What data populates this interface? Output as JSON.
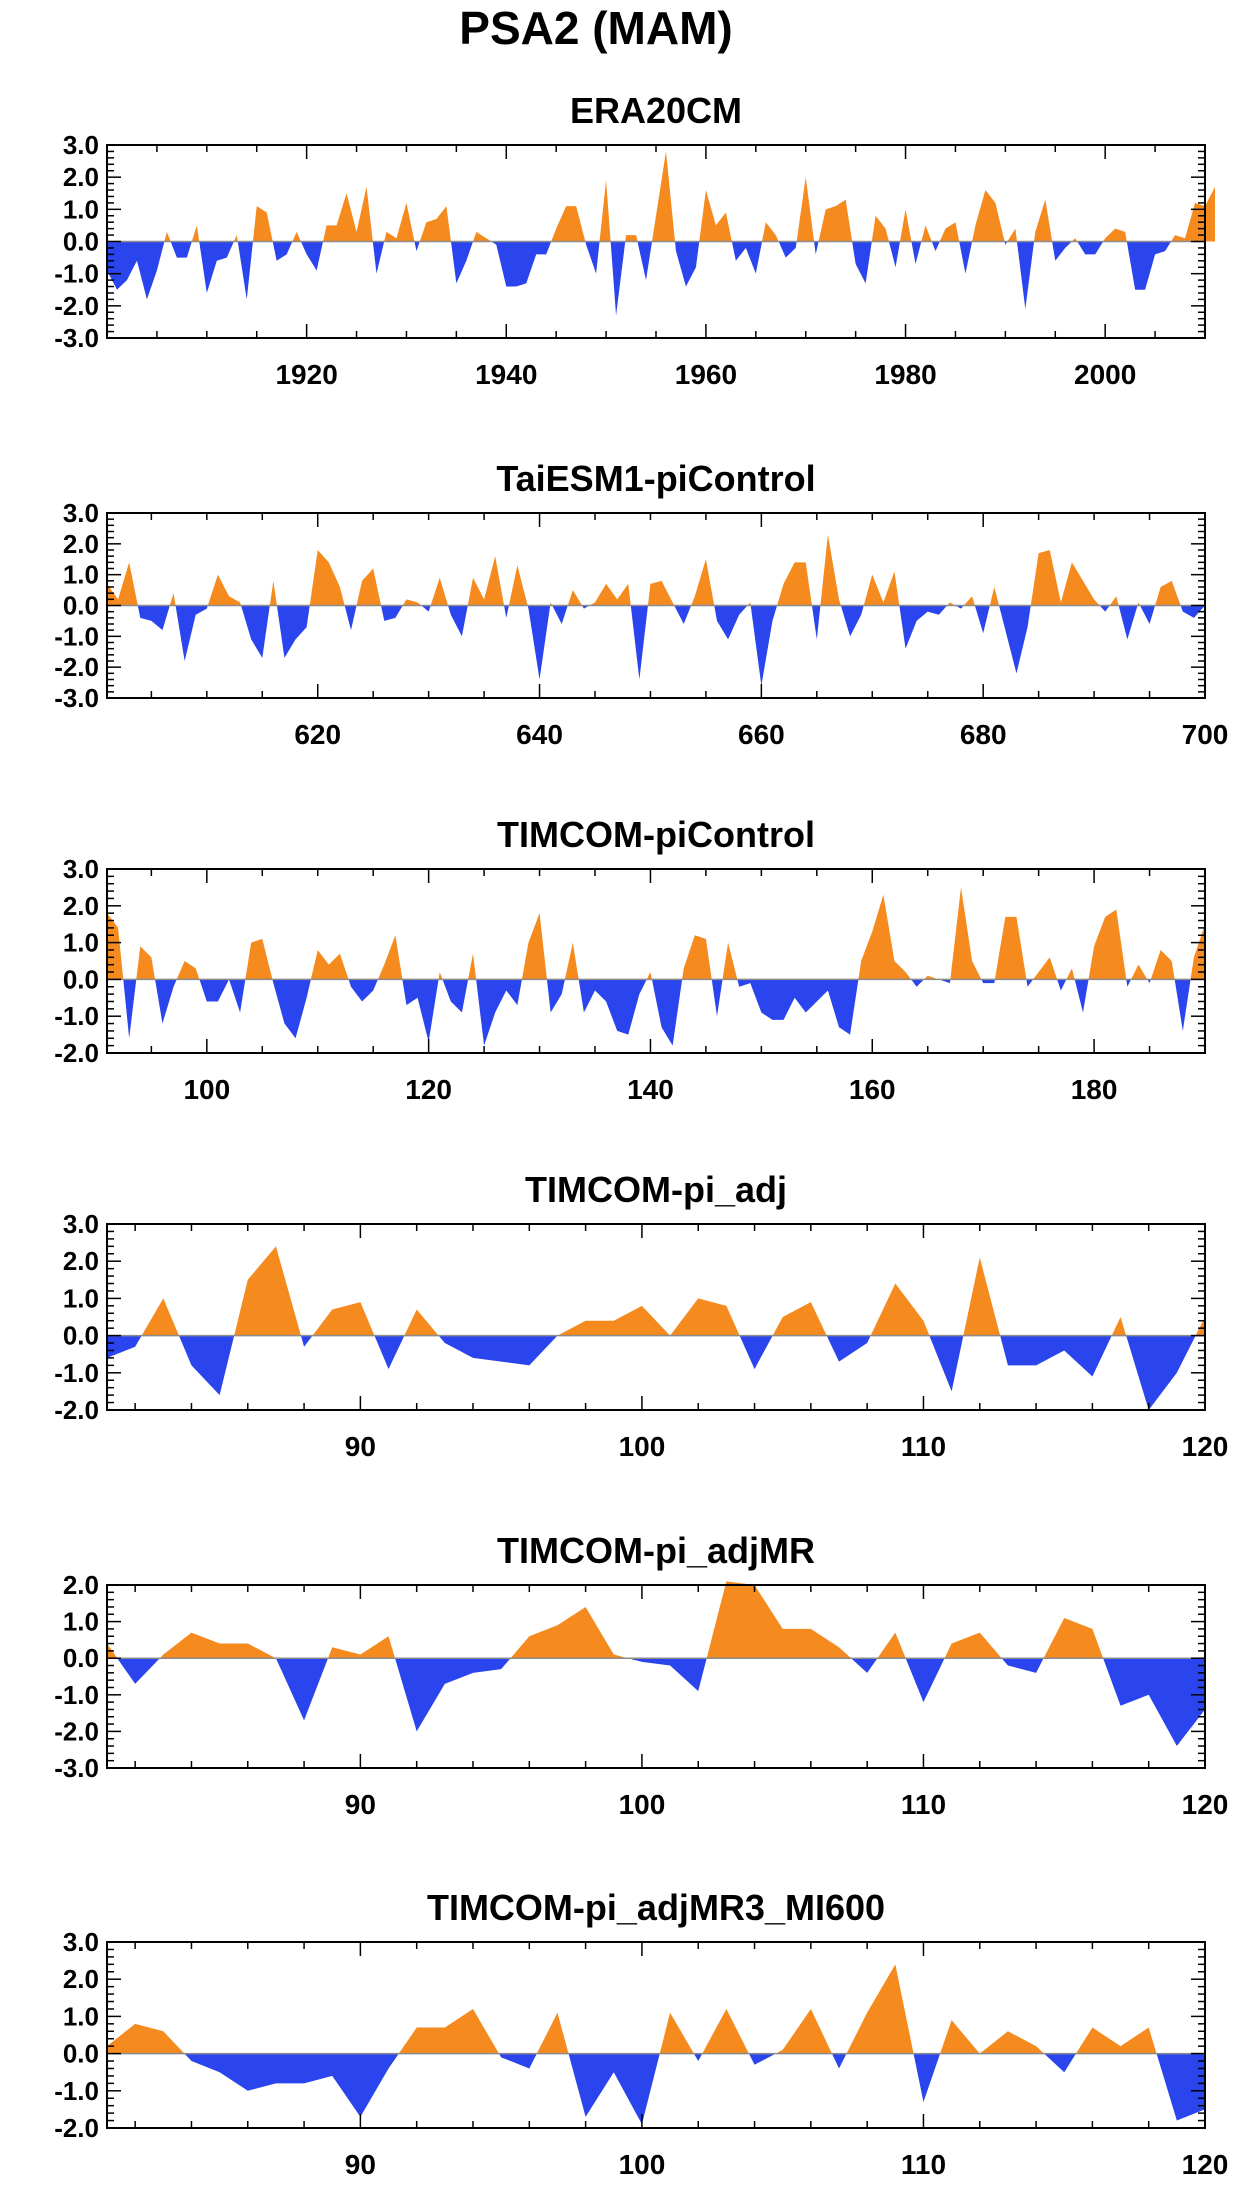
{
  "title": "PSA2 (MAM)",
  "colors": {
    "positive": "#f58a1e",
    "negative": "#2a45ee",
    "frame": "#000000"
  },
  "chart_data": [
    {
      "type": "area",
      "title": "ERA20CM",
      "xlim": [
        1900,
        2010
      ],
      "ylim": [
        -3,
        3
      ],
      "xticks": [
        1920,
        1940,
        1960,
        1980,
        2000
      ],
      "xtick_labels": [
        "1920",
        "1940",
        "1960",
        "1980",
        "2000"
      ],
      "yticks": [
        -3,
        -2,
        -1,
        0,
        1,
        2,
        3
      ],
      "ytick_labels": [
        "-3.0",
        "-2.0",
        "-1.0",
        "0.0",
        "1.0",
        "2.0",
        "3.0"
      ],
      "x_start": 1900,
      "values": [
        -0.9,
        -1.5,
        -1.2,
        -0.6,
        -1.8,
        -0.9,
        0.3,
        -0.5,
        -0.5,
        0.5,
        -1.6,
        -0.6,
        -0.5,
        0.2,
        -1.8,
        1.1,
        0.9,
        -0.6,
        -0.4,
        0.3,
        -0.4,
        -0.9,
        0.5,
        0.5,
        1.5,
        0.3,
        1.7,
        -1.0,
        0.3,
        0.1,
        1.2,
        -0.3,
        0.6,
        0.7,
        1.1,
        -1.3,
        -0.6,
        0.3,
        0.1,
        -0.1,
        -1.4,
        -1.4,
        -1.3,
        -0.4,
        -0.4,
        0.4,
        1.1,
        1.1,
        -0.1,
        -1.0,
        1.9,
        -2.3,
        0.2,
        0.2,
        -1.2,
        0.8,
        2.8,
        -0.3,
        -1.4,
        -0.8,
        1.6,
        0.5,
        0.9,
        -0.6,
        -0.2,
        -1.0,
        0.6,
        0.2,
        -0.5,
        -0.2,
        2.0,
        -0.4,
        1.0,
        1.1,
        1.3,
        -0.7,
        -1.3,
        0.8,
        0.4,
        -0.8,
        1.0,
        -0.7,
        0.5,
        -0.3,
        0.4,
        0.6,
        -1.0,
        0.5,
        1.6,
        1.2,
        -0.1,
        0.4,
        -2.1,
        0.3,
        1.3,
        -0.6,
        -0.2,
        0.1,
        -0.4,
        -0.4,
        0.1,
        0.4,
        0.3,
        -1.5,
        -1.5,
        -0.4,
        -0.3,
        0.2,
        0.1,
        1.2,
        1.1,
        1.7
      ]
    },
    {
      "type": "area",
      "title": "TaiESM1-piControl",
      "xlim": [
        601,
        700
      ],
      "ylim": [
        -3,
        3
      ],
      "xticks": [
        620,
        640,
        660,
        680,
        700
      ],
      "xtick_labels": [
        "620",
        "640",
        "660",
        "680",
        "700"
      ],
      "yticks": [
        -3,
        -2,
        -1,
        0,
        1,
        2,
        3
      ],
      "ytick_labels": [
        "-3.0",
        "-2.0",
        "-1.0",
        "0.0",
        "1.0",
        "2.0",
        "3.0"
      ],
      "x_start": 601,
      "values": [
        0.7,
        0.2,
        1.4,
        -0.4,
        -0.5,
        -0.8,
        0.4,
        -1.8,
        -0.3,
        -0.1,
        1.0,
        0.3,
        0.1,
        -1.1,
        -1.7,
        0.8,
        -1.7,
        -1.1,
        -0.7,
        1.8,
        1.4,
        0.6,
        -0.8,
        0.8,
        1.2,
        -0.5,
        -0.4,
        0.2,
        0.1,
        -0.2,
        0.9,
        -0.3,
        -1.0,
        0.9,
        0.2,
        1.6,
        -0.4,
        1.3,
        -0.1,
        -2.4,
        0.1,
        -0.6,
        0.5,
        -0.1,
        0.1,
        0.7,
        0.2,
        0.7,
        -2.4,
        0.7,
        0.8,
        0.1,
        -0.6,
        0.3,
        1.5,
        -0.5,
        -1.1,
        -0.3,
        0.1,
        -2.6,
        -0.5,
        0.7,
        1.4,
        1.4,
        -1.1,
        2.3,
        0.2,
        -1.0,
        -0.3,
        1.0,
        0.1,
        1.1,
        -1.4,
        -0.5,
        -0.2,
        -0.3,
        0.1,
        -0.1,
        0.3,
        -0.9,
        0.6,
        -0.8,
        -2.2,
        -0.7,
        1.7,
        1.8,
        0.1,
        1.4,
        0.8,
        0.2,
        -0.2,
        0.3,
        -1.1,
        0.1,
        -0.6,
        0.6,
        0.8,
        -0.2,
        -0.4,
        0.0
      ]
    },
    {
      "type": "area",
      "title": "TIMCOM-piControl",
      "xlim": [
        91,
        190
      ],
      "ylim": [
        -2,
        3
      ],
      "xticks": [
        100,
        120,
        140,
        160,
        180
      ],
      "xtick_labels": [
        "100",
        "120",
        "140",
        "160",
        "180"
      ],
      "yticks": [
        -2,
        -1,
        0,
        1,
        2,
        3
      ],
      "ytick_labels": [
        "-2.0",
        "-1.0",
        "0.0",
        "1.0",
        "2.0",
        "3.0"
      ],
      "x_start": 91,
      "values": [
        1.8,
        1.4,
        -1.6,
        0.9,
        0.6,
        -1.2,
        -0.2,
        0.5,
        0.3,
        -0.6,
        -0.6,
        0.0,
        -0.9,
        1.0,
        1.1,
        -0.1,
        -1.2,
        -1.6,
        -0.5,
        0.8,
        0.4,
        0.7,
        -0.2,
        -0.6,
        -0.3,
        0.4,
        1.2,
        -0.7,
        -0.5,
        -1.7,
        0.2,
        -0.6,
        -0.9,
        0.7,
        -1.8,
        -0.9,
        -0.3,
        -0.7,
        1.0,
        1.8,
        -0.9,
        -0.4,
        1.0,
        -0.9,
        -0.3,
        -0.6,
        -1.4,
        -1.5,
        -0.4,
        0.2,
        -1.3,
        -1.8,
        0.3,
        1.2,
        1.1,
        -1.0,
        1.0,
        -0.2,
        -0.1,
        -0.9,
        -1.1,
        -1.1,
        -0.5,
        -0.9,
        -0.6,
        -0.3,
        -1.3,
        -1.5,
        0.5,
        1.3,
        2.3,
        0.5,
        0.2,
        -0.2,
        0.1,
        0.0,
        -0.1,
        2.5,
        0.5,
        -0.1,
        -0.1,
        1.7,
        1.7,
        -0.2,
        0.2,
        0.6,
        -0.3,
        0.3,
        -0.9,
        0.9,
        1.7,
        1.9,
        -0.2,
        0.4,
        -0.1,
        0.8,
        0.5,
        -1.4,
        0.6,
        1.5
      ]
    },
    {
      "type": "area",
      "title": "TIMCOM-pi_adj",
      "xlim": [
        81,
        120
      ],
      "ylim": [
        -2,
        3
      ],
      "xticks": [
        90,
        100,
        110,
        120
      ],
      "xtick_labels": [
        "90",
        "100",
        "110",
        "120"
      ],
      "yticks": [
        -2,
        -1,
        0,
        1,
        2,
        3
      ],
      "ytick_labels": [
        "-2.0",
        "-1.0",
        "0.0",
        "1.0",
        "2.0",
        "3.0"
      ],
      "x_start": 81,
      "values": [
        -0.6,
        -0.3,
        1.0,
        -0.8,
        -1.6,
        1.5,
        2.4,
        -0.3,
        0.7,
        0.9,
        -0.9,
        0.7,
        -0.2,
        -0.6,
        -0.7,
        -0.8,
        0.0,
        0.4,
        0.4,
        0.8,
        0.0,
        1.0,
        0.8,
        -0.9,
        0.5,
        0.9,
        -0.7,
        -0.2,
        1.4,
        0.4,
        -1.5,
        2.1,
        -0.8,
        -0.8,
        -0.4,
        -1.1,
        0.5,
        -2.0,
        -1.0,
        0.5
      ]
    },
    {
      "type": "area",
      "title": "TIMCOM-pi_adjMR",
      "xlim": [
        81,
        120
      ],
      "ylim": [
        -3,
        2
      ],
      "xticks": [
        90,
        100,
        110,
        120
      ],
      "xtick_labels": [
        "90",
        "100",
        "110",
        "120"
      ],
      "yticks": [
        -3,
        -2,
        -1,
        0,
        1,
        2
      ],
      "ytick_labels": [
        "-3.0",
        "-2.0",
        "-1.0",
        "0.0",
        "1.0",
        "2.0"
      ],
      "x_start": 81,
      "values": [
        0.4,
        -0.7,
        0.1,
        0.7,
        0.4,
        0.4,
        0.0,
        -1.7,
        0.3,
        0.1,
        0.6,
        -2.0,
        -0.7,
        -0.4,
        -0.3,
        0.6,
        0.9,
        1.4,
        0.1,
        -0.1,
        -0.2,
        -0.9,
        2.1,
        2.0,
        0.8,
        0.8,
        0.3,
        -0.4,
        0.7,
        -1.2,
        0.4,
        0.7,
        -0.2,
        -0.4,
        1.1,
        0.8,
        -1.3,
        -1.0,
        -2.4,
        -1.4
      ]
    },
    {
      "type": "area",
      "title": "TIMCOM-pi_adjMR3_MI600",
      "xlim": [
        81,
        120
      ],
      "ylim": [
        -2,
        3
      ],
      "xticks": [
        90,
        100,
        110,
        120
      ],
      "xtick_labels": [
        "90",
        "100",
        "110",
        "120"
      ],
      "yticks": [
        -2,
        -1,
        0,
        1,
        2,
        3
      ],
      "ytick_labels": [
        "-2.0",
        "-1.0",
        "0.0",
        "1.0",
        "2.0",
        "3.0"
      ],
      "x_start": 81,
      "values": [
        0.2,
        0.8,
        0.6,
        -0.2,
        -0.5,
        -1.0,
        -0.8,
        -0.8,
        -0.6,
        -1.7,
        -0.4,
        0.7,
        0.7,
        1.2,
        -0.1,
        -0.4,
        1.1,
        -1.7,
        -0.5,
        -1.9,
        1.1,
        -0.2,
        1.2,
        -0.3,
        0.1,
        1.2,
        -0.4,
        1.1,
        2.4,
        -1.3,
        0.9,
        0.0,
        0.6,
        0.2,
        -0.5,
        0.7,
        0.2,
        0.7,
        -1.8,
        -1.5
      ]
    }
  ]
}
